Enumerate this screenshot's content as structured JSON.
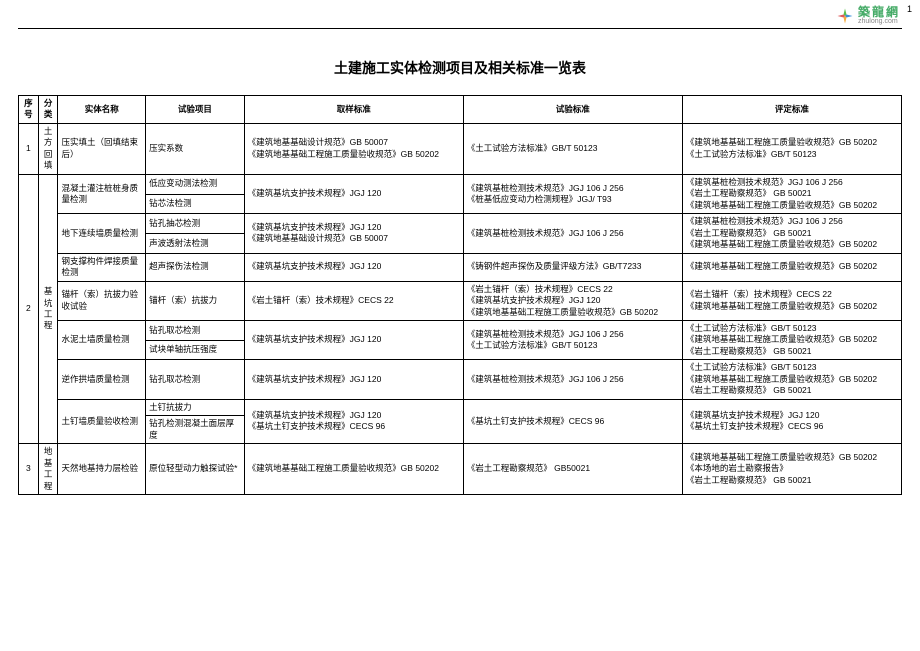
{
  "page_number": "1",
  "logo": {
    "cn": "築龍網",
    "en": "zhulong.com"
  },
  "title": "土建施工实体检测项目及相关标准一览表",
  "columns": [
    "序号",
    "分类",
    "实体名称",
    "试验项目",
    "取样标准",
    "试验标准",
    "评定标准"
  ],
  "rows": [
    {
      "no": "1",
      "cat": "土方回填",
      "catRows": 1,
      "entity": "压实填土（回填结束后）",
      "entityRows": 1,
      "test": "压实系数",
      "sample": "《建筑地基基础设计规范》GB 50007\n《建筑地基基础工程施工质量验收规范》GB 50202",
      "std": "《土工试验方法标准》GB/T 50123",
      "eval": "《建筑地基基础工程施工质量验收规范》GB 50202\n《土工试验方法标准》GB/T 50123"
    },
    {
      "no": "2",
      "cat": "基坑工程",
      "catRows": 11,
      "entity": "混凝土灌注桩桩身质量检测",
      "entityRows": 2,
      "test": "低应变动测法检测",
      "sample": "《建筑基坑支护技术规程》JGJ 120",
      "sampleRows": 2,
      "std": "《建筑基桩检测技术规范》JGJ 106  J 256\n《桩基低应变动力检测规程》JGJ/ T93",
      "stdRows": 2,
      "eval": "《建筑基桩检测技术规范》JGJ 106  J 256\n《岩土工程勘察规范》 GB 50021\n《建筑地基基础工程施工质量验收规范》GB 50202",
      "evalRows": 2
    },
    {
      "test": "钻芯法检测"
    },
    {
      "entity": "地下连续墙质量检测",
      "entityRows": 2,
      "test": "钻孔抽芯检测",
      "sample": "《建筑基坑支护技术规程》JGJ 120\n《建筑地基基础设计规范》GB 50007",
      "sampleRows": 2,
      "std": "《建筑基桩检测技术规范》JGJ 106  J 256",
      "stdRows": 2,
      "eval": "《建筑基桩检测技术规范》JGJ 106  J 256\n《岩土工程勘察规范》 GB 50021\n《建筑地基基础工程施工质量验收规范》GB 50202",
      "evalRows": 2
    },
    {
      "test": "声波透射法检测"
    },
    {
      "entity": "钢支撑构件焊接质量检测",
      "entityRows": 1,
      "test": "超声探伤法检测",
      "sample": "《建筑基坑支护技术规程》JGJ 120",
      "std": "《铸钢件超声探伤及质量评级方法》GB/T7233",
      "eval": "《建筑地基基础工程施工质量验收规范》GB 50202"
    },
    {
      "entity": "锚杆（索）抗拔力验收试验",
      "entityRows": 1,
      "test": "锚杆（索）抗拔力",
      "sample": "《岩土锚杆（索）技术规程》CECS 22",
      "std": "《岩土锚杆（索）技术规程》CECS 22\n《建筑基坑支护技术规程》JGJ 120\n《建筑地基基础工程施工质量验收规范》GB 50202",
      "eval": "《岩土锚杆（索）技术规程》CECS 22\n《建筑地基基础工程施工质量验收规范》GB 50202"
    },
    {
      "entity": "水泥土墙质量检测",
      "entityRows": 2,
      "test": "钻孔取芯检测",
      "sample": "《建筑基坑支护技术规程》JGJ 120",
      "sampleRows": 2,
      "std": "《建筑基桩检测技术规范》JGJ 106  J 256\n《土工试验方法标准》GB/T 50123",
      "stdRows": 2,
      "eval": "《土工试验方法标准》GB/T 50123\n《建筑地基基础工程施工质量验收规范》GB 50202\n《岩土工程勘察规范》 GB 50021",
      "evalRows": 2
    },
    {
      "test": "试块单轴抗压强度"
    },
    {
      "entity": "逆作拱墙质量检测",
      "entityRows": 1,
      "test": "钻孔取芯检测",
      "sample": "《建筑基坑支护技术规程》JGJ 120",
      "std": "《建筑基桩检测技术规范》JGJ 106  J 256",
      "eval": "《土工试验方法标准》GB/T 50123\n《建筑地基基础工程施工质量验收规范》GB 50202\n《岩土工程勘察规范》 GB 50021"
    },
    {
      "entity": "土钉墙质量验收检测",
      "entityRows": 2,
      "test": "土钉抗拔力",
      "sample": "《建筑基坑支护技术规程》JGJ 120\n《基坑土钉支护技术规程》CECS 96",
      "sampleRows": 2,
      "std": "《基坑土钉支护技术规程》CECS 96",
      "stdRows": 2,
      "eval": "《建筑基坑支护技术规程》JGJ 120\n《基坑土钉支护技术规程》CECS 96",
      "evalRows": 2
    },
    {
      "test": "钻孔检测混凝土面层厚度"
    },
    {
      "no": "3",
      "cat": "地基工程",
      "catRows": 1,
      "entity": "天然地基持力层检验",
      "entityRows": 1,
      "test": "原位轻型动力触探试验*",
      "sample": "《建筑地基基础工程施工质量验收规范》GB 50202",
      "std": "《岩土工程勘察规范》  GB50021",
      "eval": "《建筑地基基础工程施工质量验收规范》GB 50202\n《本场地的岩土勘察报告》\n《岩土工程勘察规范》  GB 50021"
    }
  ]
}
